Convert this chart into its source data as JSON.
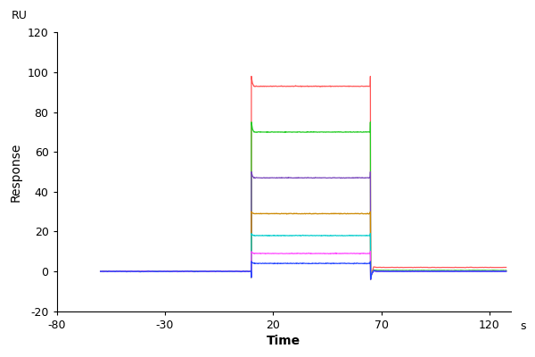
{
  "xlabel": "Time",
  "ylabel": "Response",
  "ru_label": "RU",
  "s_label": "s",
  "xlim": [
    -80,
    130
  ],
  "ylim": [
    -20,
    120
  ],
  "xticks": [
    -80,
    -30,
    20,
    70,
    120
  ],
  "yticks": [
    -20,
    0,
    20,
    40,
    60,
    80,
    100,
    120
  ],
  "assoc_start": 10,
  "assoc_end": 65,
  "baseline_start": -60,
  "post_end": 128,
  "curves": [
    {
      "color": "#FF5555",
      "plateau": 93,
      "spike_up": 98,
      "post": 2.0
    },
    {
      "color": "#22CC22",
      "plateau": 70,
      "spike_up": 75,
      "post": 0.5
    },
    {
      "color": "#7744BB",
      "plateau": 47,
      "spike_up": 50,
      "post": 0.2
    },
    {
      "color": "#CC8800",
      "plateau": 29,
      "spike_up": 30,
      "post": 0.1
    },
    {
      "color": "#00CCCC",
      "plateau": 18,
      "spike_up": 19,
      "post": 0.1
    },
    {
      "color": "#FF44FF",
      "plateau": 9,
      "spike_up": 10,
      "post": 0.0
    },
    {
      "color": "#2244FF",
      "plateau": 4,
      "spike_up": 5,
      "post": 0.0
    }
  ]
}
